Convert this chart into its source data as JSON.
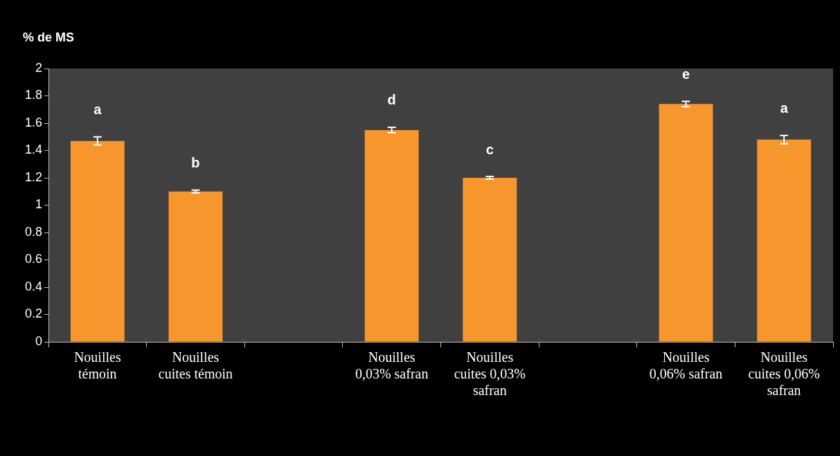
{
  "chart_data": {
    "type": "bar",
    "ylabel": "% de MS",
    "categories": [
      "Nouilles témoin",
      "Nouilles cuites témoin",
      null,
      "Nouilles 0,03% safran",
      "Nouilles cuites 0,03% safran",
      null,
      "Nouilles 0,06% safran",
      "Nouilles cuites 0,06% safran"
    ],
    "values": [
      1.47,
      1.1,
      null,
      1.55,
      1.2,
      null,
      1.74,
      1.48
    ],
    "errors": [
      0.03,
      0.01,
      null,
      0.02,
      0.01,
      null,
      0.02,
      0.03
    ],
    "color": "#f7962c",
    "ylim": [
      0,
      2
    ],
    "yticks": [
      0,
      0.2,
      0.4,
      0.6,
      0.8,
      1,
      1.2,
      1.4,
      1.6,
      1.8,
      2
    ],
    "grid": false,
    "legend": false,
    "annotations": [
      "a",
      "b",
      "d",
      "c",
      "e",
      "a"
    ]
  }
}
